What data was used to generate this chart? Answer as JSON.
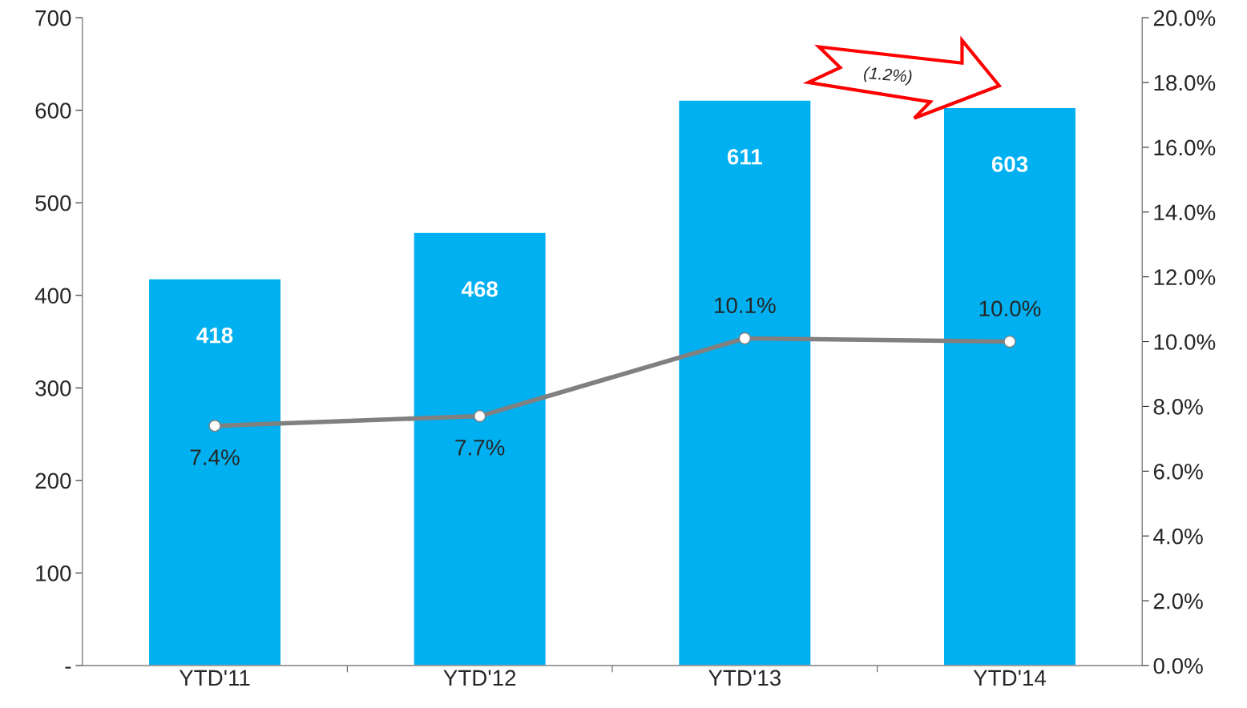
{
  "chart_data": {
    "type": "bar",
    "categories": [
      "YTD'11",
      "YTD'12",
      "YTD'13",
      "YTD'14"
    ],
    "series": [
      {
        "color": "#00b0f0",
        "values": [
          418,
          468,
          611,
          603
        ]
      },
      {
        "type": "line",
        "axis": "y2",
        "color": "#808080",
        "values": [
          7.4,
          7.7,
          10.1,
          10.0
        ],
        "value_labels": [
          "7.4%",
          "7.7%",
          "10.1%",
          "10.0%"
        ]
      }
    ],
    "data_labels": true,
    "ylim": [
      0,
      700
    ],
    "yticks": [
      {
        "value": 0,
        "label": "-"
      },
      100,
      200,
      300,
      400,
      500,
      600,
      700
    ],
    "y2lim": [
      0,
      20
    ],
    "y2ticks": [
      {
        "value": 0,
        "label": "0.0%"
      },
      {
        "value": 2,
        "label": "2.0%"
      },
      {
        "value": 4,
        "label": "4.0%"
      },
      {
        "value": 6,
        "label": "6.0%"
      },
      {
        "value": 8,
        "label": "8.0%"
      },
      {
        "value": 10,
        "label": "10.0%"
      },
      {
        "value": 12,
        "label": "12.0%"
      },
      {
        "value": 14,
        "label": "14.0%"
      },
      {
        "value": 16,
        "label": "16.0%"
      },
      {
        "value": 18,
        "label": "18.0%"
      },
      {
        "value": 20,
        "label": "20.0%"
      }
    ],
    "marker": "circle",
    "line_style": "solid",
    "grid": false,
    "legend": false,
    "annotations": [
      "(1.2%)"
    ]
  }
}
